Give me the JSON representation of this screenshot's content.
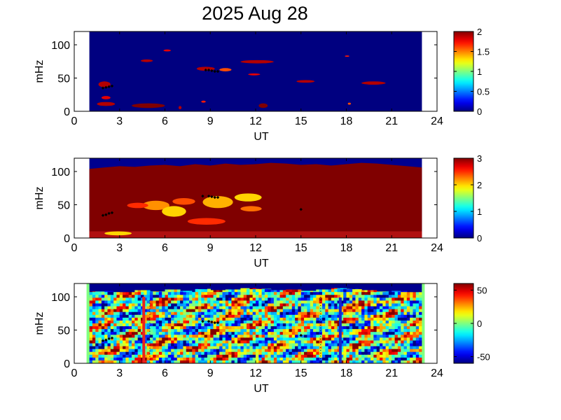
{
  "figure_title": "2025 Aug 28",
  "chart_data": [
    {
      "type": "heatmap",
      "title": "",
      "xlabel": "UT",
      "ylabel": "mHz",
      "xlim": [
        0,
        24
      ],
      "ylim": [
        0,
        120
      ],
      "xticks": [
        0,
        3,
        6,
        9,
        12,
        15,
        18,
        21,
        24
      ],
      "yticks": [
        0,
        50,
        100
      ],
      "data_x_range": [
        1,
        23
      ],
      "colorbar": {
        "range": [
          0,
          2
        ],
        "ticks": [
          0,
          0.5,
          1,
          1.5,
          2
        ],
        "ticklabels": [
          "0",
          "0.5",
          "1",
          "1.5",
          "2"
        ]
      },
      "background_value": 0,
      "patches": [
        {
          "x": 1.6,
          "y": 36,
          "w": 0.8,
          "h": 9,
          "v": 1.9
        },
        {
          "x": 1.8,
          "y": 18,
          "w": 0.6,
          "h": 5,
          "v": 1.8
        },
        {
          "x": 1.5,
          "y": 8,
          "w": 1.2,
          "h": 6,
          "v": 1.9
        },
        {
          "x": 3.8,
          "y": 5,
          "w": 2.2,
          "h": 7,
          "v": 2
        },
        {
          "x": 4.4,
          "y": 74,
          "w": 0.8,
          "h": 4,
          "v": 1.9
        },
        {
          "x": 5.9,
          "y": 90,
          "w": 0.5,
          "h": 3,
          "v": 1.8
        },
        {
          "x": 6.9,
          "y": 3,
          "w": 0.2,
          "h": 5,
          "v": 1.9
        },
        {
          "x": 8.1,
          "y": 61,
          "w": 1.2,
          "h": 6,
          "v": 1.9
        },
        {
          "x": 8.4,
          "y": 13,
          "w": 0.3,
          "h": 3,
          "v": 1.7
        },
        {
          "x": 9.6,
          "y": 60,
          "w": 0.8,
          "h": 5,
          "v": 1.6
        },
        {
          "x": 11.0,
          "y": 72,
          "w": 2.2,
          "h": 5,
          "v": 1.9
        },
        {
          "x": 11.5,
          "y": 54,
          "w": 0.8,
          "h": 3,
          "v": 1.8
        },
        {
          "x": 12.2,
          "y": 5,
          "w": 0.6,
          "h": 7,
          "v": 2
        },
        {
          "x": 14.7,
          "y": 43,
          "w": 1.2,
          "h": 4,
          "v": 1.9
        },
        {
          "x": 17.9,
          "y": 82,
          "w": 0.3,
          "h": 2,
          "v": 1.7
        },
        {
          "x": 19.0,
          "y": 40,
          "w": 1.6,
          "h": 5,
          "v": 1.9
        },
        {
          "x": 18.1,
          "y": 10,
          "w": 0.2,
          "h": 3,
          "v": 1.6
        }
      ],
      "marks": [
        {
          "x": 1.9,
          "y": 35
        },
        {
          "x": 2.1,
          "y": 36
        },
        {
          "x": 2.3,
          "y": 37
        },
        {
          "x": 2.5,
          "y": 38
        },
        {
          "x": 8.7,
          "y": 62
        },
        {
          "x": 8.9,
          "y": 62
        },
        {
          "x": 9.1,
          "y": 61
        },
        {
          "x": 9.3,
          "y": 60
        },
        {
          "x": 9.5,
          "y": 60
        }
      ]
    },
    {
      "type": "heatmap",
      "title": "",
      "xlabel": "UT",
      "ylabel": "mHz",
      "xlim": [
        0,
        24
      ],
      "ylim": [
        0,
        120
      ],
      "xticks": [
        0,
        3,
        6,
        9,
        12,
        15,
        18,
        21,
        24
      ],
      "yticks": [
        0,
        50,
        100
      ],
      "data_x_range": [
        1,
        23
      ],
      "colorbar": {
        "range": [
          0,
          3
        ],
        "ticks": [
          0,
          1,
          2,
          3
        ],
        "ticklabels": [
          "0",
          "1",
          "2",
          "3"
        ]
      },
      "background_value": 3,
      "top_edge_mhz": [
        104,
        106,
        108,
        107,
        109,
        110,
        108,
        111,
        109,
        112,
        110,
        111,
        113,
        112,
        110,
        111,
        109,
        111,
        113,
        112,
        110,
        108,
        106
      ],
      "patches": [
        {
          "x": 4.5,
          "y": 42,
          "w": 1.8,
          "h": 14,
          "v": 2.2
        },
        {
          "x": 5.8,
          "y": 32,
          "w": 1.6,
          "h": 16,
          "v": 2.0
        },
        {
          "x": 6.5,
          "y": 50,
          "w": 1.5,
          "h": 10,
          "v": 2.4
        },
        {
          "x": 7.5,
          "y": 20,
          "w": 2.5,
          "h": 10,
          "v": 2.5
        },
        {
          "x": 8.5,
          "y": 45,
          "w": 2.0,
          "h": 18,
          "v": 2.1
        },
        {
          "x": 10.6,
          "y": 55,
          "w": 1.8,
          "h": 12,
          "v": 2.0
        },
        {
          "x": 11.0,
          "y": 40,
          "w": 1.4,
          "h": 8,
          "v": 2.3
        },
        {
          "x": 3.5,
          "y": 45,
          "w": 1.4,
          "h": 8,
          "v": 2.5
        },
        {
          "x": 2.0,
          "y": 4,
          "w": 1.8,
          "h": 6,
          "v": 2.0
        }
      ],
      "marks": [
        {
          "x": 1.9,
          "y": 34
        },
        {
          "x": 2.1,
          "y": 35
        },
        {
          "x": 2.3,
          "y": 37
        },
        {
          "x": 2.5,
          "y": 38
        },
        {
          "x": 8.5,
          "y": 63
        },
        {
          "x": 8.9,
          "y": 63
        },
        {
          "x": 9.1,
          "y": 62
        },
        {
          "x": 9.3,
          "y": 61
        },
        {
          "x": 9.5,
          "y": 61
        },
        {
          "x": 15.0,
          "y": 43
        }
      ]
    },
    {
      "type": "heatmap",
      "title": "",
      "xlabel": "UT",
      "ylabel": "mHz",
      "xlim": [
        0,
        24
      ],
      "ylim": [
        0,
        120
      ],
      "xticks": [
        0,
        3,
        6,
        9,
        12,
        15,
        18,
        21,
        24
      ],
      "yticks": [
        0,
        50,
        100
      ],
      "data_x_range": [
        1,
        23
      ],
      "colorbar": {
        "range": [
          -60,
          60
        ],
        "ticks": [
          50,
          0,
          -50
        ],
        "ticklabels": [
          "50",
          "0",
          "-50"
        ]
      },
      "top_edge_mhz": [
        108,
        109,
        107,
        110,
        108,
        111,
        109,
        112,
        110,
        111,
        113,
        112,
        110,
        111,
        109,
        111,
        113,
        112,
        110,
        108,
        109,
        107,
        108
      ],
      "vertical_bars": [
        {
          "x": 4.6,
          "y_top": 100,
          "color": "#e8231e"
        },
        {
          "x": 17.6,
          "y_top": 99,
          "color": "#1a24c8"
        }
      ],
      "dotted_markers": [
        {
          "x": 5.0,
          "y_top": 95
        },
        {
          "x": 16.3,
          "y_top": 100
        }
      ],
      "marks": [
        {
          "x": 1.9,
          "y": 34
        },
        {
          "x": 2.1,
          "y": 35
        },
        {
          "x": 2.3,
          "y": 37
        },
        {
          "x": 2.5,
          "y": 38
        },
        {
          "x": 8.5,
          "y": 63
        },
        {
          "x": 8.9,
          "y": 63
        },
        {
          "x": 9.1,
          "y": 62
        },
        {
          "x": 9.3,
          "y": 61
        },
        {
          "x": 9.5,
          "y": 61
        },
        {
          "x": 15.0,
          "y": 42
        }
      ]
    }
  ]
}
